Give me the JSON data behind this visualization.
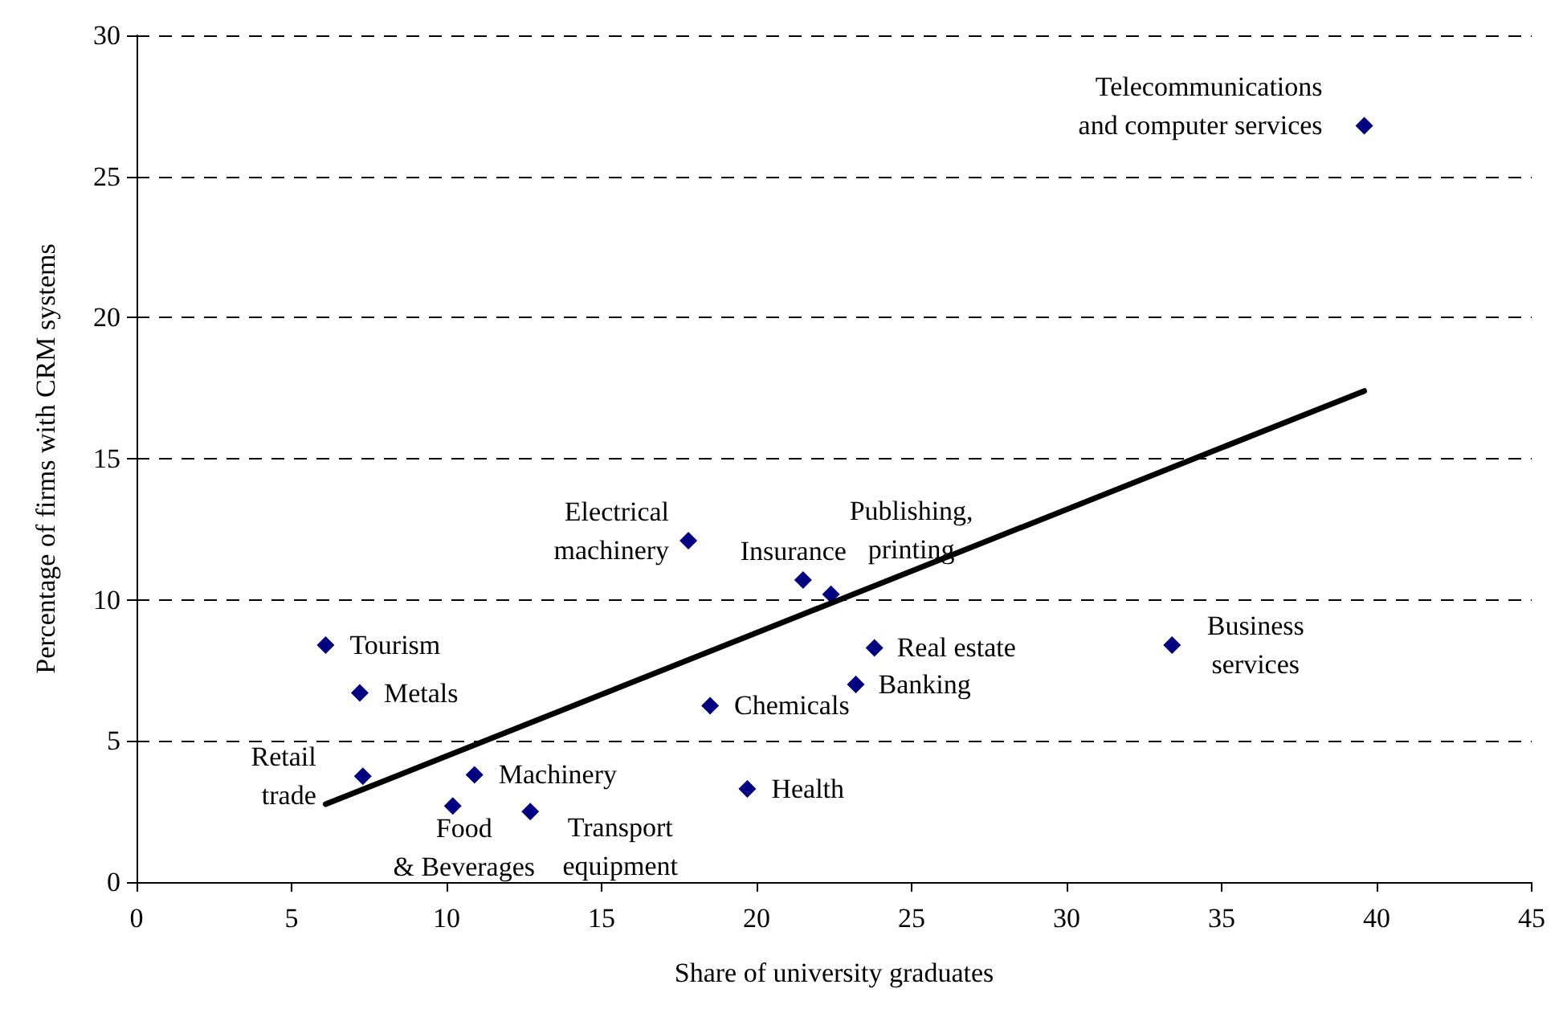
{
  "chart_data": {
    "type": "scatter",
    "xlabel": "Share of university graduates",
    "ylabel": "Percentage of firms with CRM systems",
    "xlim": [
      0,
      45
    ],
    "xticks": [
      0,
      5,
      10,
      15,
      20,
      25,
      30,
      35,
      40,
      45
    ],
    "ylim": [
      0,
      30
    ],
    "yticks": [
      0,
      5,
      10,
      15,
      20,
      25,
      30
    ],
    "grid": "y",
    "series": [
      {
        "color": "#000080",
        "marker": "diamond",
        "x": [
          39.6,
          17.8,
          21.5,
          22.4,
          6.1,
          7.2,
          7.3,
          10.9,
          10.2,
          12.7,
          19.7,
          18.5,
          23.2,
          23.8,
          33.4
        ],
        "values": [
          26.8,
          12.1,
          10.7,
          10.2,
          8.4,
          6.7,
          3.75,
          3.8,
          2.7,
          2.5,
          3.3,
          6.25,
          7.0,
          8.3,
          8.4
        ]
      },
      {
        "type": "line",
        "color": "#000000",
        "marker": "none",
        "line_style": "solid",
        "x": [
          6.1,
          39.6
        ],
        "values": [
          2.76,
          17.4
        ]
      }
    ],
    "annotations": [
      {
        "text": "Telecommunications\nand computer services",
        "x": 39.6,
        "y": 26.8
      },
      {
        "text": "Electrical\nmachinery",
        "x": 17.8,
        "y": 12.1
      },
      {
        "text": "Insurance",
        "x": 21.5,
        "y": 10.7
      },
      {
        "text": "Publishing,\nprinting",
        "x": 22.4,
        "y": 10.2
      },
      {
        "text": "Tourism",
        "x": 6.1,
        "y": 8.4
      },
      {
        "text": "Metals",
        "x": 7.2,
        "y": 6.7
      },
      {
        "text": "Retail\ntrade",
        "x": 7.3,
        "y": 3.75
      },
      {
        "text": "Machinery",
        "x": 10.9,
        "y": 3.8
      },
      {
        "text": "Food\n& Beverages",
        "x": 10.2,
        "y": 2.7
      },
      {
        "text": "Transport\nequipment",
        "x": 12.7,
        "y": 2.5
      },
      {
        "text": "Health",
        "x": 19.7,
        "y": 3.3
      },
      {
        "text": "Chemicals",
        "x": 18.5,
        "y": 6.25
      },
      {
        "text": "Banking",
        "x": 23.2,
        "y": 7.0
      },
      {
        "text": "Real estate",
        "x": 23.8,
        "y": 8.3
      },
      {
        "text": "Business\nservices",
        "x": 33.4,
        "y": 8.4
      }
    ]
  }
}
